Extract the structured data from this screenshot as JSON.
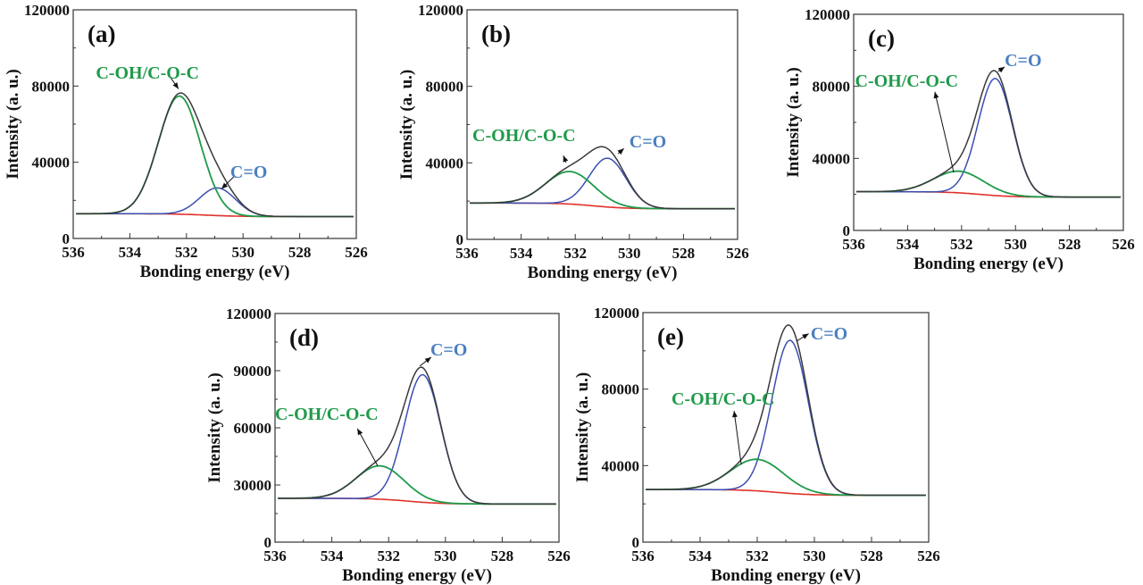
{
  "colors": {
    "envelope": "#3a3a3a",
    "background": "#e0302a",
    "coh_coc": "#1f9a4a",
    "c_eq_o": "#3b4fb0",
    "label_green": "#1f9a4a",
    "label_blue": "#4a7fc0"
  },
  "chart_data": [
    {
      "type": "line",
      "panel_label": "(a)",
      "xlabel": "Bonding energy (eV)",
      "ylabel": "Intensity (a. u.)",
      "xlim": [
        536,
        526
      ],
      "ylim": [
        0,
        120000
      ],
      "xticks": [
        "536",
        "534",
        "532",
        "530",
        "528",
        "526"
      ],
      "yticks": [
        "0",
        "40000",
        "80000",
        "120000"
      ],
      "baseline": [
        13000,
        11500
      ],
      "peaks": [
        {
          "name": "C-OH/C-O-C",
          "center": 532.25,
          "height": 62000,
          "fwhm": 1.75
        },
        {
          "name": "C=O",
          "center": 530.9,
          "height": 14500,
          "fwhm": 1.5
        }
      ]
    },
    {
      "type": "line",
      "panel_label": "(b)",
      "xlabel": "Bonding energy (eV)",
      "ylabel": "Intensity (a. u.)",
      "xlim": [
        536,
        526
      ],
      "ylim": [
        0,
        120000
      ],
      "xticks": [
        "536",
        "534",
        "532",
        "530",
        "528",
        "526"
      ],
      "yticks": [
        "0",
        "40000",
        "80000",
        "120000"
      ],
      "baseline": [
        19000,
        16000
      ],
      "peaks": [
        {
          "name": "C-OH/C-O-C",
          "center": 532.2,
          "height": 17000,
          "fwhm": 2.1
        },
        {
          "name": "C=O",
          "center": 530.8,
          "height": 25500,
          "fwhm": 1.6
        }
      ]
    },
    {
      "type": "line",
      "panel_label": "(c)",
      "xlabel": "Bonding energy (eV)",
      "ylabel": "Intensity (a. u.)",
      "xlim": [
        536,
        526
      ],
      "ylim": [
        0,
        120000
      ],
      "xticks": [
        "536",
        "534",
        "532",
        "530",
        "528",
        "526"
      ],
      "yticks": [
        "0",
        "40000",
        "80000",
        "120000"
      ],
      "baseline": [
        21500,
        18500
      ],
      "peaks": [
        {
          "name": "C-OH/C-O-C",
          "center": 532.1,
          "height": 12000,
          "fwhm": 2.2
        },
        {
          "name": "C=O",
          "center": 530.75,
          "height": 65000,
          "fwhm": 1.5
        }
      ]
    },
    {
      "type": "line",
      "panel_label": "(d)",
      "xlabel": "Bonding energy (eV)",
      "ylabel": "Intensity (a. u.)",
      "xlim": [
        536,
        526
      ],
      "ylim": [
        0,
        120000
      ],
      "xticks": [
        "536",
        "534",
        "532",
        "530",
        "528",
        "526"
      ],
      "yticks": [
        "0",
        "30000",
        "60000",
        "90000",
        "120000"
      ],
      "baseline": [
        23000,
        20000
      ],
      "peaks": [
        {
          "name": "C-OH/C-O-C",
          "center": 532.3,
          "height": 17500,
          "fwhm": 2.0
        },
        {
          "name": "C=O",
          "center": 530.8,
          "height": 67000,
          "fwhm": 1.5
        }
      ]
    },
    {
      "type": "line",
      "panel_label": "(e)",
      "xlabel": "Bonding energy (eV)",
      "ylabel": "Intensity (a. u.)",
      "xlim": [
        536,
        526
      ],
      "ylim": [
        0,
        120000
      ],
      "xticks": [
        "536",
        "534",
        "532",
        "530",
        "528",
        "526"
      ],
      "yticks": [
        "0",
        "40000",
        "80000",
        "120000"
      ],
      "baseline": [
        27500,
        24500
      ],
      "peaks": [
        {
          "name": "C-OH/C-O-C",
          "center": 532.0,
          "height": 16500,
          "fwhm": 2.2
        },
        {
          "name": "C=O",
          "center": 530.85,
          "height": 80000,
          "fwhm": 1.5
        }
      ]
    }
  ]
}
